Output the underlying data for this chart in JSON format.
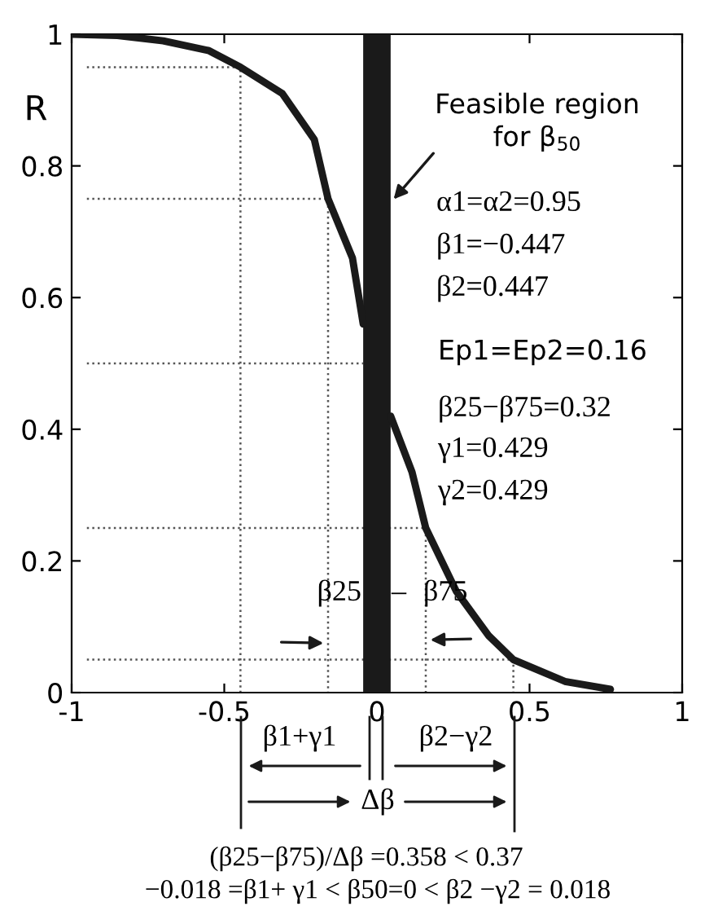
{
  "chart_data": {
    "type": "line",
    "ylabel": "R",
    "xlim": [
      -1,
      1
    ],
    "xticks": [
      -1,
      -0.5,
      0,
      0.5,
      1
    ],
    "ylim": [
      0,
      1
    ],
    "yticks": [
      0,
      0.2,
      0.4,
      0.6,
      0.8,
      1
    ],
    "series": [
      {
        "color": "#555555",
        "line_style": "dotted",
        "x": [
          -0.95,
          -0.447,
          -0.447
        ],
        "values": [
          0.95,
          0.95,
          0
        ]
      },
      {
        "color": "#555555",
        "line_style": "dotted",
        "x": [
          -0.95,
          -0.16,
          -0.16
        ],
        "values": [
          0.75,
          0.75,
          0
        ]
      },
      {
        "color": "#555555",
        "line_style": "dotted",
        "x": [
          -0.95,
          -0.045
        ],
        "values": [
          0.5,
          0.5
        ]
      },
      {
        "color": "#555555",
        "line_style": "dotted",
        "x": [
          -0.95,
          0.16,
          0.16
        ],
        "values": [
          0.25,
          0.25,
          0
        ]
      },
      {
        "color": "#555555",
        "line_style": "dotted",
        "x": [
          -0.95,
          0.447,
          0.447
        ],
        "values": [
          0.05,
          0.05,
          0
        ]
      },
      {
        "color": "#1a1a1a",
        "line_style": "solid",
        "x": [
          -1,
          -0.85,
          -0.7,
          -0.55,
          -0.447,
          -0.31,
          -0.205,
          -0.16,
          -0.08,
          -0.045,
          0,
          0.045,
          0.115,
          0.16,
          0.26,
          0.365,
          0.447,
          0.616,
          0.765
        ],
        "values": [
          1,
          0.998,
          0.99,
          0.975,
          0.95,
          0.91,
          0.84,
          0.75,
          0.66,
          0.56,
          null,
          0.42,
          0.335,
          0.25,
          0.154,
          0.087,
          0.05,
          0.017,
          0.005
        ]
      }
    ],
    "bands": [
      {
        "axis": "x",
        "from": -0.045,
        "to": 0.045,
        "color": "#1a1a1a"
      }
    ],
    "annotations": [
      {
        "text": "Feasible region\nfor β$_{50}$",
        "x": 0.045,
        "y": 0.744
      },
      "α1=α2=0.95",
      "β1=−0.447",
      "β2=0.447",
      "Ep1=Ep2=0.16",
      "β25−β75=0.32",
      "γ1=0.429",
      "γ2=0.429",
      {
        "text": "β25",
        "x": -0.16,
        "y": 0.075
      },
      "–",
      {
        "text": "β75",
        "x": 0.16,
        "y": 0.08
      },
      "β1+γ1",
      "β2−γ2",
      "Δβ",
      "(β25−β75)/Δβ =0.358 < 0.37",
      "−0.018 =β1+ γ1 < β50=0 < β2 −γ2 = 0.018"
    ]
  }
}
